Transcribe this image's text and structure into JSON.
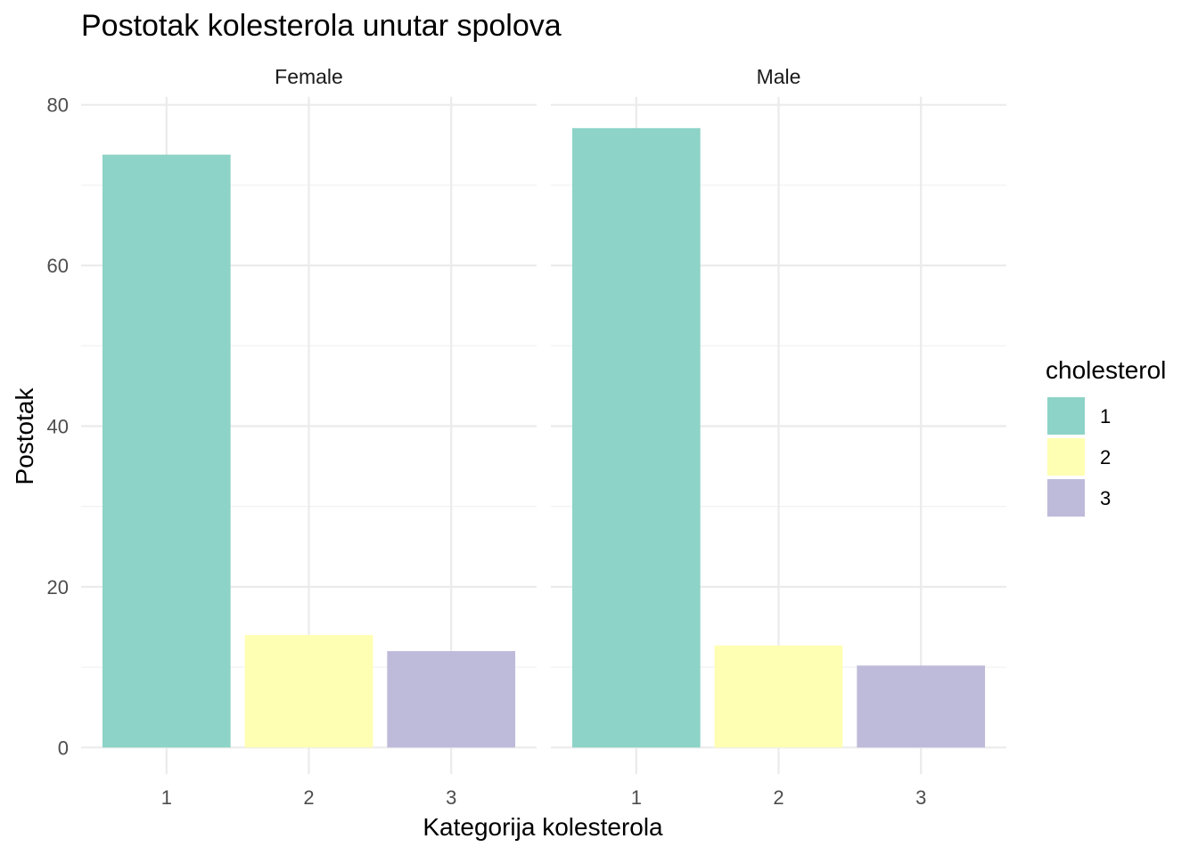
{
  "chart_data": {
    "type": "bar",
    "title": "Postotak kolesterola unutar spolova",
    "xlabel": "Kategorija kolesterola",
    "ylabel": "Postotak",
    "categories": [
      "1",
      "2",
      "3"
    ],
    "ylim": [
      0,
      80
    ],
    "yticks": [
      "0",
      "20",
      "40",
      "60",
      "80"
    ],
    "grid": true,
    "legend_position": "right",
    "legend_title": "cholesterol",
    "legend": [
      {
        "label": "1",
        "color": "#8DD3C7"
      },
      {
        "label": "2",
        "color": "#FFFFB3"
      },
      {
        "label": "3",
        "color": "#BEBADA"
      }
    ],
    "facets": [
      {
        "name": "Female",
        "values": [
          73.8,
          14.0,
          12.0
        ]
      },
      {
        "name": "Male",
        "values": [
          77.1,
          12.7,
          10.2
        ]
      }
    ]
  }
}
